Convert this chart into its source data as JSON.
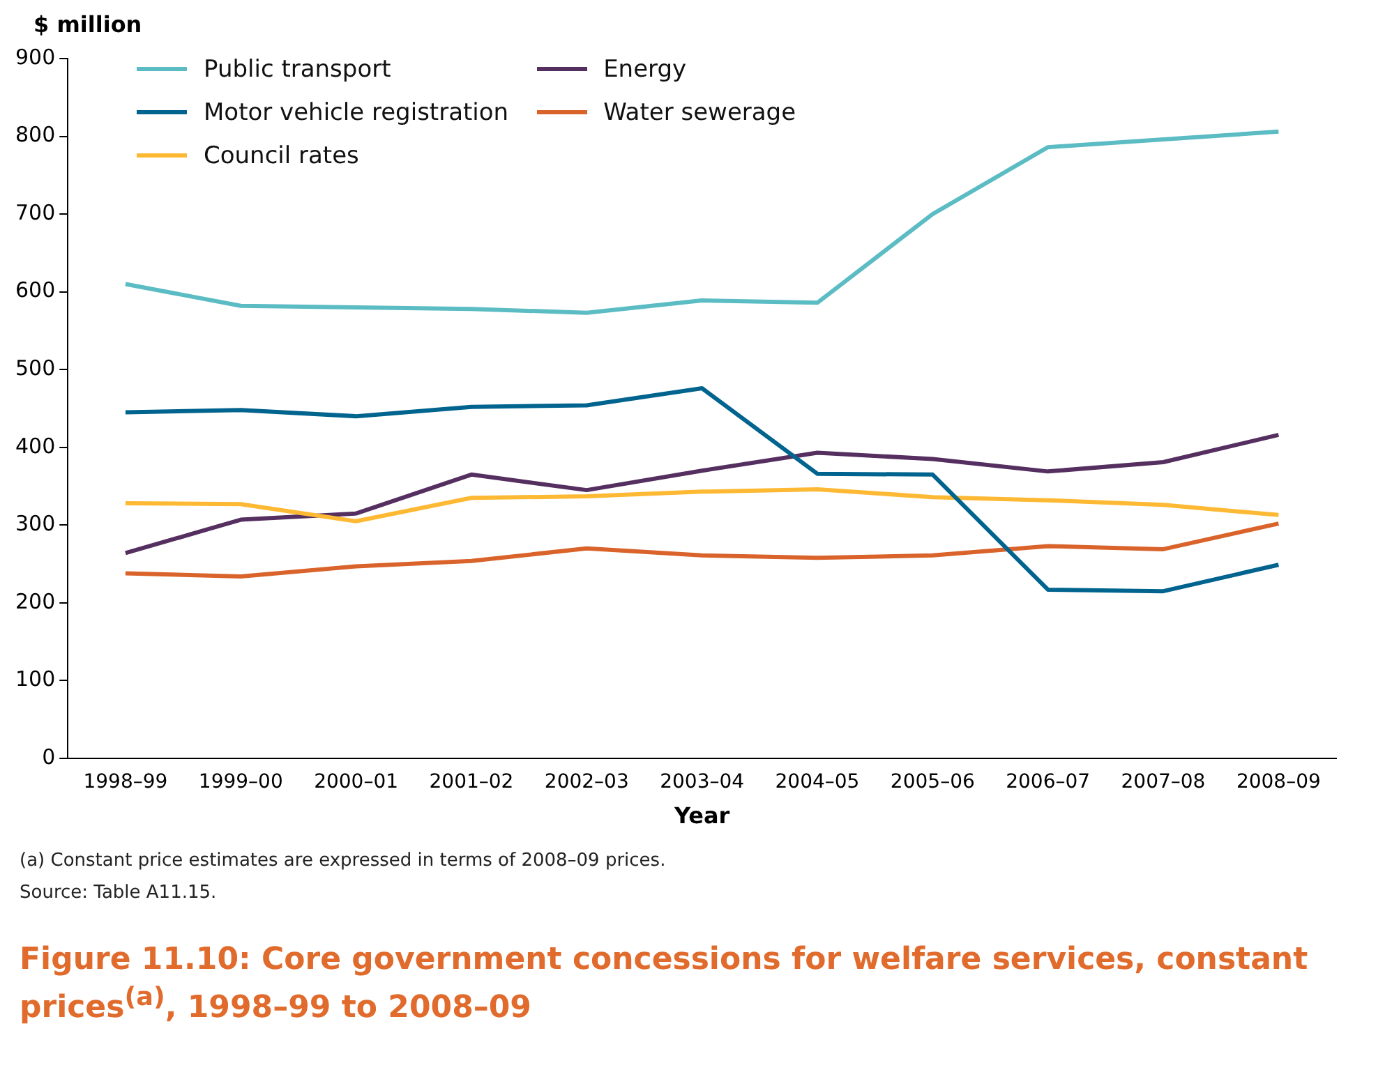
{
  "chart_data": {
    "type": "line",
    "title": "Figure 11.10: Core government concessions for welfare services, constant prices$^{(a)}$, 1998–99 to 2008–09",
    "ylabel": "$ million",
    "xlabel": "Year",
    "annotations": [
      "(a)  Constant price estimates are expressed in terms of 2008–09 prices.",
      "Source: Table A11.15."
    ],
    "categories": [
      "1998–99",
      "1999–00",
      "2000–01",
      "2001–02",
      "2002–03",
      "2003–04",
      "2004–05",
      "2005–06",
      "2006–07",
      "2007–08",
      "2008–09"
    ],
    "series": [
      {
        "name": "Public transport",
        "color": "#5bbcc4",
        "values": [
          610,
          582,
          580,
          578,
          573,
          589,
          586,
          700,
          786,
          796,
          806
        ]
      },
      {
        "name": "Motor vehicle registration",
        "color": "#00648f",
        "values": [
          445,
          448,
          440,
          452,
          454,
          476,
          366,
          365,
          217,
          215,
          249
        ]
      },
      {
        "name": "Council rates",
        "color": "#fdb933",
        "values": [
          328,
          327,
          305,
          335,
          337,
          343,
          346,
          336,
          332,
          326,
          313
        ]
      },
      {
        "name": "Energy",
        "color": "#552f5f",
        "values": [
          264,
          307,
          315,
          365,
          345,
          370,
          393,
          385,
          369,
          381,
          416
        ]
      },
      {
        "name": "Water sewerage",
        "color": "#d9632a",
        "values": [
          238,
          234,
          247,
          254,
          270,
          261,
          258,
          261,
          273,
          269,
          302
        ]
      }
    ],
    "ylim": [
      0,
      900
    ],
    "yticks": [
      0,
      100,
      200,
      300,
      400,
      500,
      600,
      700,
      800,
      900
    ],
    "grid": false,
    "legend": "top left",
    "marker": "none",
    "line_style": "solid"
  }
}
